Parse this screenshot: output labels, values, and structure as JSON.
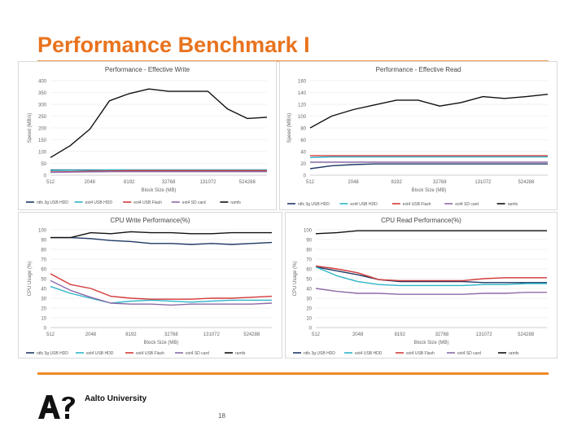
{
  "slide": {
    "title": "Performance Benchmark I",
    "page_number": "18"
  },
  "branding": {
    "org_name": "Aalto University",
    "logo_text": "A?"
  },
  "colors": {
    "title": "#e8731e",
    "rule": "#f08a24"
  },
  "legend_labels": {
    "ntfs": "ntfs 3g USB HDD",
    "ext4usbhdd": "ext4 USB HDD",
    "ext4flash": "ext4 USB Flash",
    "ext4sd": "ext4 SD card",
    "ramfs": "ramfs"
  },
  "chart_data": [
    {
      "type": "line",
      "title": "Performance - Effective Write",
      "xlabel": "Block Size (MB)",
      "ylabel": "Speed (MB/s)",
      "categories": [
        "512",
        "2048",
        "8192",
        "32768",
        "131072",
        "524288"
      ],
      "x": [
        512,
        1024,
        2048,
        4096,
        8192,
        16384,
        32768,
        65536,
        131072,
        262144,
        524288,
        1048576
      ],
      "yticks": [
        0,
        50,
        100,
        150,
        200,
        250,
        300,
        350,
        400
      ],
      "ylim": [
        0,
        400
      ],
      "grid": true,
      "legend": "bottom",
      "series": [
        {
          "name": "ntfs 3g USB HDD",
          "color": "#1f3864",
          "values": [
            22,
            22,
            22,
            22,
            22,
            22,
            22,
            22,
            22,
            22,
            22,
            22
          ]
        },
        {
          "name": "ext4 USB HDD",
          "color": "#2eb5c9",
          "values": [
            20,
            21,
            21,
            22,
            22,
            22,
            22,
            22,
            22,
            22,
            22,
            22
          ]
        },
        {
          "name": "ext4 USB Flash",
          "color": "#d43a3a",
          "values": [
            14,
            15,
            17,
            18,
            19,
            19,
            19,
            19,
            19,
            19,
            19,
            19
          ]
        },
        {
          "name": "ext4 SD card",
          "color": "#8c6aa8",
          "values": [
            12,
            13,
            14,
            15,
            15,
            15,
            15,
            15,
            15,
            15,
            15,
            15
          ]
        },
        {
          "name": "ramfs",
          "color": "#111111",
          "values": [
            75,
            125,
            195,
            315,
            345,
            365,
            355,
            355,
            355,
            280,
            240,
            245
          ]
        }
      ]
    },
    {
      "type": "line",
      "title": "Performance - Effective Read",
      "xlabel": "Block Size (MB)",
      "ylabel": "Speed (MB/s)",
      "categories": [
        "512",
        "2048",
        "8192",
        "32768",
        "131072",
        "524288"
      ],
      "x": [
        512,
        1024,
        2048,
        4096,
        8192,
        16384,
        32768,
        65536,
        131072,
        262144,
        524288,
        1048576
      ],
      "yticks": [
        0,
        20,
        40,
        60,
        80,
        100,
        120,
        140,
        160
      ],
      "ylim": [
        0,
        160
      ],
      "grid": true,
      "legend": "bottom",
      "series": [
        {
          "name": "ntfs 3g USB HDD",
          "color": "#1f3864",
          "values": [
            11,
            16,
            18,
            19,
            19,
            19,
            19,
            19,
            19,
            19,
            19,
            19
          ]
        },
        {
          "name": "ext4 USB HDD",
          "color": "#2eb5c9",
          "values": [
            30,
            31,
            31,
            31,
            31,
            31,
            31,
            31,
            31,
            31,
            31,
            31
          ]
        },
        {
          "name": "ext4 USB Flash",
          "color": "#d43a3a",
          "values": [
            33,
            33,
            33,
            33,
            33,
            33,
            33,
            33,
            33,
            33,
            33,
            33
          ]
        },
        {
          "name": "ext4 SD card",
          "color": "#8c6aa8",
          "values": [
            22,
            22,
            22,
            22,
            22,
            22,
            22,
            22,
            22,
            22,
            22,
            22
          ]
        },
        {
          "name": "ramfs",
          "color": "#111111",
          "values": [
            80,
            100,
            111,
            119,
            127,
            127,
            117,
            123,
            133,
            130,
            133,
            137
          ]
        }
      ]
    },
    {
      "type": "line",
      "title": "CPU Write Performance(%)",
      "xlabel": "Block Size (MB)",
      "ylabel": "CPU Usage (%)",
      "categories": [
        "512",
        "2048",
        "8192",
        "32768",
        "131072",
        "524288"
      ],
      "x": [
        512,
        1024,
        2048,
        4096,
        8192,
        16384,
        32768,
        65536,
        131072,
        262144,
        524288,
        1048576
      ],
      "yticks": [
        0,
        10,
        20,
        30,
        40,
        50,
        60,
        70,
        80,
        90,
        100
      ],
      "ylim": [
        0,
        100
      ],
      "grid": true,
      "legend": "bottom",
      "series": [
        {
          "name": "ntfs 3g USB HDD",
          "color": "#1f3864",
          "values": [
            92,
            92,
            91,
            89,
            88,
            86,
            86,
            85,
            86,
            85,
            86,
            87
          ]
        },
        {
          "name": "ext4 USB HDD",
          "color": "#2eb5c9",
          "values": [
            42,
            35,
            30,
            25,
            27,
            28,
            27,
            26,
            27,
            28,
            28,
            28
          ]
        },
        {
          "name": "ext4 USB Flash",
          "color": "#d43a3a",
          "values": [
            55,
            44,
            40,
            32,
            30,
            29,
            29,
            29,
            30,
            30,
            31,
            32
          ]
        },
        {
          "name": "ext4 SD card",
          "color": "#8c6aa8",
          "values": [
            48,
            38,
            31,
            25,
            24,
            24,
            23,
            24,
            24,
            24,
            24,
            25
          ]
        },
        {
          "name": "ramfs",
          "color": "#111111",
          "values": [
            92,
            92,
            97,
            96,
            98,
            97,
            97,
            96,
            96,
            97,
            97,
            97
          ]
        }
      ]
    },
    {
      "type": "line",
      "title": "CPU Read Performance(%)",
      "xlabel": "Block Size (MB)",
      "ylabel": "CPU Usage (%)",
      "categories": [
        "512",
        "2048",
        "8192",
        "32768",
        "131072",
        "524288"
      ],
      "x": [
        512,
        1024,
        2048,
        4096,
        8192,
        16384,
        32768,
        65536,
        131072,
        262144,
        524288,
        1048576
      ],
      "yticks": [
        0,
        10,
        20,
        30,
        40,
        50,
        60,
        70,
        80,
        90,
        100
      ],
      "ylim": [
        0,
        100
      ],
      "grid": true,
      "legend": "bottom",
      "series": [
        {
          "name": "ntfs 3g USB HDD",
          "color": "#1f3864",
          "values": [
            62,
            58,
            54,
            49,
            47,
            47,
            47,
            47,
            46,
            46,
            46,
            46
          ]
        },
        {
          "name": "ext4 USB HDD",
          "color": "#2eb5c9",
          "values": [
            62,
            53,
            47,
            44,
            43,
            43,
            43,
            43,
            44,
            44,
            45,
            45
          ]
        },
        {
          "name": "ext4 USB Flash",
          "color": "#d43a3a",
          "values": [
            63,
            60,
            56,
            49,
            48,
            48,
            48,
            48,
            50,
            51,
            51,
            51
          ]
        },
        {
          "name": "ext4 SD card",
          "color": "#8c6aa8",
          "values": [
            40,
            37,
            35,
            35,
            34,
            34,
            34,
            34,
            35,
            35,
            36,
            36
          ]
        },
        {
          "name": "ramfs",
          "color": "#111111",
          "values": [
            96,
            97,
            99,
            99,
            99,
            99,
            99,
            99,
            99,
            99,
            99,
            99
          ]
        }
      ]
    }
  ]
}
